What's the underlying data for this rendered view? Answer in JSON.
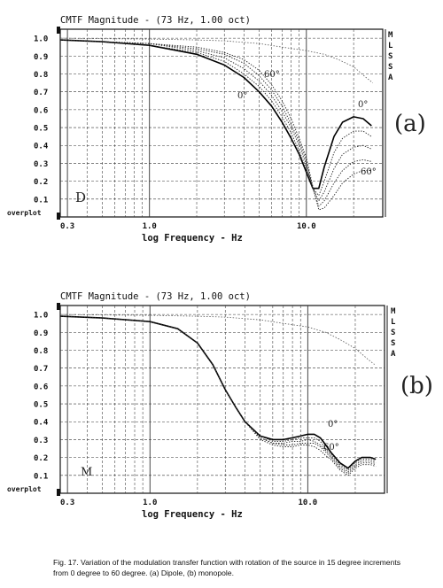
{
  "charts": [
    {
      "panel_title": "CMTF Magnitude - (73 Hz, 1.00 oct)",
      "xlabel": "log Frequency - Hz",
      "side_letters": [
        "M",
        "L",
        "S",
        "S",
        "A"
      ],
      "overplot_label": "overplot",
      "panel_mark": "D",
      "handwritten_label": "(a)",
      "angle_annotations": [
        "60°",
        "0°",
        "0°",
        "60°"
      ]
    },
    {
      "panel_title": "CMTF Magnitude - (73 Hz, 1.00 oct)",
      "xlabel": "log Frequency - Hz",
      "side_letters": [
        "M",
        "L",
        "S",
        "S",
        "A"
      ],
      "overplot_label": "overplot",
      "panel_mark": "M",
      "handwritten_label": "(b)",
      "angle_annotations": [
        "0°",
        "60°"
      ]
    }
  ],
  "caption": {
    "line1": "Fig. 17.  Variation of the modulation transfer function with rotation of the source in 15 degree increments",
    "line2": "from 0 degree to 60 degree. (a) Dipole, (b) monopole."
  },
  "chart_data": [
    {
      "type": "line",
      "title": "CMTF Magnitude - (73 Hz, 1.00 oct)",
      "xlabel": "log Frequency - Hz",
      "ylabel": "",
      "x_scale": "log",
      "xlim": [
        0.27,
        28
      ],
      "ylim": [
        0,
        1.05
      ],
      "x_ticks": [
        0.3,
        1.0,
        10.0
      ],
      "y_ticks": [
        0.1,
        0.2,
        0.3,
        0.4,
        0.5,
        0.6,
        0.7,
        0.8,
        0.9,
        1.0
      ],
      "grid": true,
      "series": [
        {
          "style": "solid",
          "x": [
            0.27,
            0.5,
            1.0,
            2.0,
            3.0,
            4.0,
            5.0,
            6.0,
            7.0,
            8.0,
            9.0,
            10.0,
            11.0,
            12.0,
            13.0,
            15.0,
            17.0,
            20.0,
            23.0,
            26.0
          ],
          "y": [
            0.99,
            0.98,
            0.96,
            0.91,
            0.85,
            0.78,
            0.7,
            0.62,
            0.53,
            0.44,
            0.35,
            0.25,
            0.16,
            0.16,
            0.28,
            0.45,
            0.53,
            0.56,
            0.55,
            0.51
          ]
        },
        {
          "style": "dotted",
          "x": [
            0.27,
            0.5,
            1.0,
            2.0,
            3.0,
            4.0,
            5.0,
            6.0,
            7.0,
            8.0,
            9.0,
            10.0,
            11.0,
            12.0,
            13.0,
            15.0,
            17.0,
            20.0,
            23.0,
            26.0
          ],
          "y": [
            0.99,
            0.98,
            0.96,
            0.92,
            0.87,
            0.8,
            0.73,
            0.65,
            0.56,
            0.47,
            0.37,
            0.27,
            0.16,
            0.12,
            0.2,
            0.36,
            0.44,
            0.48,
            0.48,
            0.45
          ]
        },
        {
          "style": "dotted",
          "x": [
            0.27,
            0.5,
            1.0,
            2.0,
            3.0,
            4.0,
            5.0,
            6.0,
            7.0,
            8.0,
            9.0,
            10.0,
            11.0,
            12.0,
            13.0,
            15.0,
            17.0,
            20.0,
            23.0,
            26.0
          ],
          "y": [
            0.99,
            0.98,
            0.97,
            0.93,
            0.89,
            0.83,
            0.76,
            0.68,
            0.59,
            0.5,
            0.4,
            0.29,
            0.16,
            0.09,
            0.14,
            0.27,
            0.35,
            0.39,
            0.4,
            0.38
          ]
        },
        {
          "style": "dotted",
          "x": [
            0.27,
            0.5,
            1.0,
            2.0,
            3.0,
            4.0,
            5.0,
            6.0,
            7.0,
            8.0,
            9.0,
            10.0,
            11.0,
            12.0,
            13.0,
            15.0,
            17.0,
            20.0,
            23.0,
            26.0
          ],
          "y": [
            0.99,
            0.98,
            0.97,
            0.94,
            0.91,
            0.86,
            0.79,
            0.71,
            0.62,
            0.52,
            0.42,
            0.31,
            0.16,
            0.06,
            0.09,
            0.19,
            0.26,
            0.31,
            0.32,
            0.31
          ]
        },
        {
          "style": "dotted",
          "x": [
            0.27,
            0.5,
            1.0,
            2.0,
            3.0,
            4.0,
            5.0,
            6.0,
            7.0,
            8.0,
            9.0,
            10.0,
            11.0,
            12.0,
            13.0,
            15.0,
            17.0,
            20.0,
            23.0,
            26.0
          ],
          "y": [
            0.99,
            0.98,
            0.97,
            0.95,
            0.92,
            0.88,
            0.82,
            0.74,
            0.65,
            0.55,
            0.44,
            0.33,
            0.17,
            0.04,
            0.05,
            0.12,
            0.19,
            0.24,
            0.26,
            0.26
          ]
        },
        {
          "style": "reference",
          "x": [
            0.27,
            0.5,
            1.0,
            2.0,
            3.0,
            5.0,
            7.0,
            10.0,
            13.0,
            16.0,
            20.0,
            24.0,
            26.5
          ],
          "y": [
            1.0,
            0.997,
            0.995,
            0.99,
            0.985,
            0.97,
            0.95,
            0.93,
            0.91,
            0.88,
            0.84,
            0.78,
            0.75
          ]
        }
      ]
    },
    {
      "type": "line",
      "title": "CMTF Magnitude - (73 Hz, 1.00 oct)",
      "xlabel": "log Frequency - Hz",
      "ylabel": "",
      "x_scale": "log",
      "xlim": [
        0.27,
        28
      ],
      "ylim": [
        0,
        1.05
      ],
      "x_ticks": [
        0.3,
        1.0,
        10.0
      ],
      "y_ticks": [
        0.1,
        0.2,
        0.3,
        0.4,
        0.5,
        0.6,
        0.7,
        0.8,
        0.9,
        1.0
      ],
      "grid": true,
      "series": [
        {
          "style": "solid",
          "x": [
            0.27,
            0.5,
            1.0,
            1.5,
            2.0,
            2.5,
            3.0,
            3.5,
            4.0,
            5.0,
            6.0,
            7.0,
            8.0,
            9.0,
            10.0,
            11.0,
            12.0,
            13.0,
            14.0,
            16.0,
            18.0,
            20.0,
            22.0,
            25.0,
            27.0
          ],
          "y": [
            0.99,
            0.98,
            0.96,
            0.92,
            0.84,
            0.72,
            0.58,
            0.48,
            0.4,
            0.32,
            0.3,
            0.3,
            0.31,
            0.32,
            0.33,
            0.33,
            0.31,
            0.27,
            0.23,
            0.17,
            0.14,
            0.18,
            0.2,
            0.2,
            0.19
          ]
        },
        {
          "style": "dotted",
          "x": [
            0.27,
            0.5,
            1.0,
            1.5,
            2.0,
            2.5,
            3.0,
            3.5,
            4.0,
            5.0,
            6.0,
            7.0,
            8.0,
            9.0,
            10.0,
            11.0,
            12.0,
            13.0,
            14.0,
            16.0,
            18.0,
            20.0,
            22.0,
            25.0,
            27.0
          ],
          "y": [
            0.99,
            0.98,
            0.96,
            0.92,
            0.84,
            0.72,
            0.58,
            0.48,
            0.4,
            0.32,
            0.29,
            0.29,
            0.3,
            0.31,
            0.31,
            0.31,
            0.29,
            0.25,
            0.22,
            0.16,
            0.13,
            0.17,
            0.19,
            0.19,
            0.18
          ]
        },
        {
          "style": "dotted",
          "x": [
            0.27,
            0.5,
            1.0,
            1.5,
            2.0,
            2.5,
            3.0,
            3.5,
            4.0,
            5.0,
            6.0,
            7.0,
            8.0,
            9.0,
            10.0,
            11.0,
            12.0,
            13.0,
            14.0,
            16.0,
            18.0,
            20.0,
            22.0,
            25.0,
            27.0
          ],
          "y": [
            0.99,
            0.98,
            0.96,
            0.92,
            0.84,
            0.72,
            0.58,
            0.48,
            0.4,
            0.31,
            0.28,
            0.28,
            0.29,
            0.29,
            0.3,
            0.29,
            0.27,
            0.24,
            0.21,
            0.15,
            0.12,
            0.16,
            0.18,
            0.18,
            0.17
          ]
        },
        {
          "style": "dotted",
          "x": [
            0.27,
            0.5,
            1.0,
            1.5,
            2.0,
            2.5,
            3.0,
            3.5,
            4.0,
            5.0,
            6.0,
            7.0,
            8.0,
            9.0,
            10.0,
            11.0,
            12.0,
            13.0,
            14.0,
            16.0,
            18.0,
            20.0,
            22.0,
            25.0,
            27.0
          ],
          "y": [
            0.99,
            0.98,
            0.96,
            0.92,
            0.84,
            0.72,
            0.58,
            0.48,
            0.4,
            0.31,
            0.28,
            0.27,
            0.27,
            0.28,
            0.28,
            0.28,
            0.26,
            0.23,
            0.2,
            0.14,
            0.11,
            0.15,
            0.17,
            0.17,
            0.16
          ]
        },
        {
          "style": "dotted",
          "x": [
            0.27,
            0.5,
            1.0,
            1.5,
            2.0,
            2.5,
            3.0,
            3.5,
            4.0,
            5.0,
            6.0,
            7.0,
            8.0,
            9.0,
            10.0,
            11.0,
            12.0,
            13.0,
            14.0,
            16.0,
            18.0,
            20.0,
            22.0,
            25.0,
            27.0
          ],
          "y": [
            0.99,
            0.98,
            0.96,
            0.92,
            0.84,
            0.72,
            0.58,
            0.48,
            0.4,
            0.3,
            0.27,
            0.26,
            0.26,
            0.27,
            0.27,
            0.26,
            0.24,
            0.21,
            0.19,
            0.13,
            0.1,
            0.14,
            0.16,
            0.16,
            0.15
          ]
        },
        {
          "style": "reference",
          "x": [
            0.27,
            0.5,
            1.0,
            2.0,
            3.0,
            5.0,
            7.0,
            10.0,
            13.0,
            16.0,
            20.0,
            24.0,
            26.5
          ],
          "y": [
            1.0,
            0.997,
            0.995,
            0.99,
            0.985,
            0.97,
            0.95,
            0.93,
            0.9,
            0.86,
            0.81,
            0.75,
            0.72
          ]
        }
      ]
    }
  ]
}
